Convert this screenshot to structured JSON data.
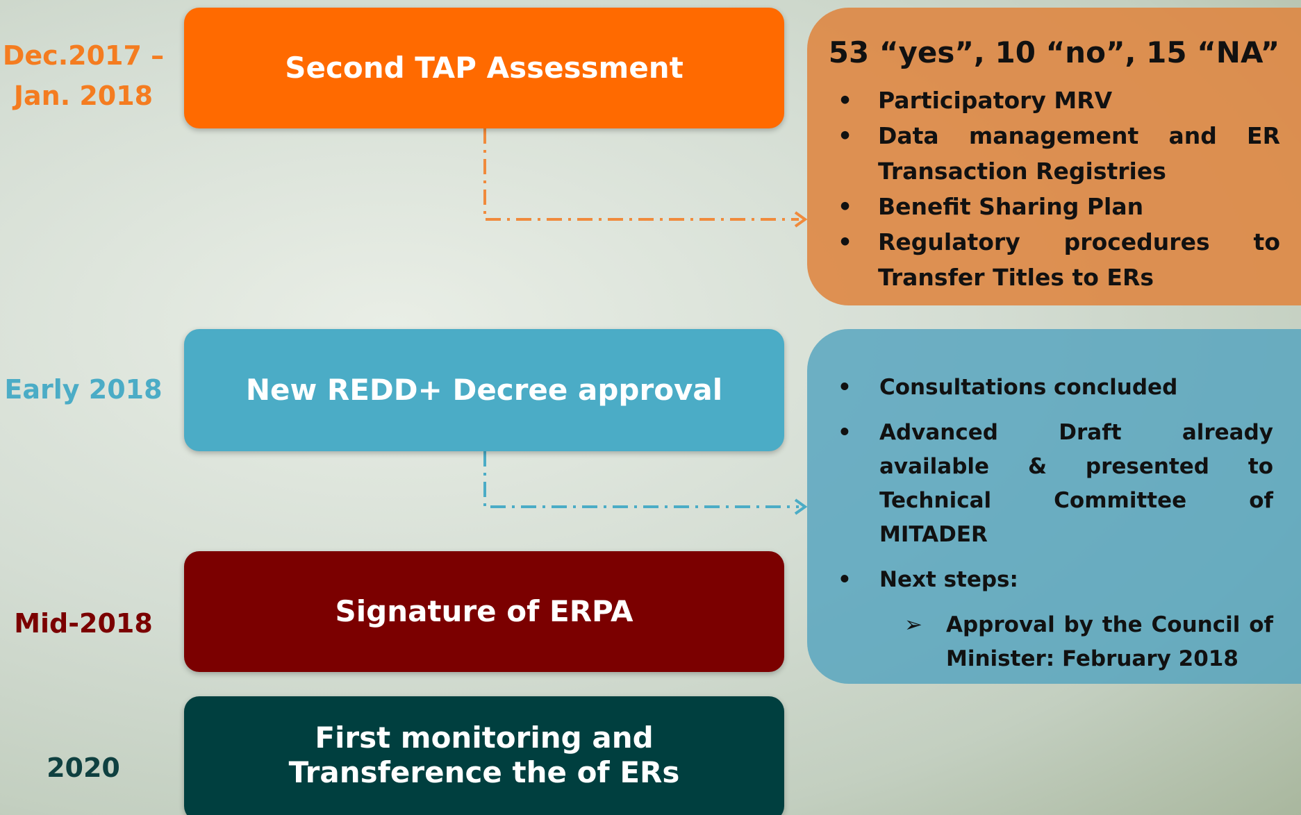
{
  "timeline": [
    {
      "date_lines": [
        "Dec.2017 –",
        "Jan. 2018"
      ],
      "title": "Second TAP Assessment"
    },
    {
      "date_lines": [
        "Early 2018"
      ],
      "title": "New REDD+ Decree approval"
    },
    {
      "date_lines": [
        "Mid-2018"
      ],
      "title": "Signature of ERPA"
    },
    {
      "date_lines": [
        "2020"
      ],
      "title": "First monitoring and Transference the of ERs"
    }
  ],
  "details": [
    {
      "heading": "53 “yes”, 10 “no”, 15 “NA”",
      "bullets": [
        "Participatory MRV",
        "Data management and ER Transaction Registries",
        "Benefit Sharing Plan",
        "Regulatory procedures to Transfer Titles to ERs"
      ]
    },
    {
      "bullets": [
        "Consultations concluded",
        "Advanced Draft already available & presented to Technical Committee of MITADER",
        "Next steps:"
      ],
      "sub_bullets": [
        "Approval by the Council of Minister: February 2018"
      ]
    }
  ]
}
